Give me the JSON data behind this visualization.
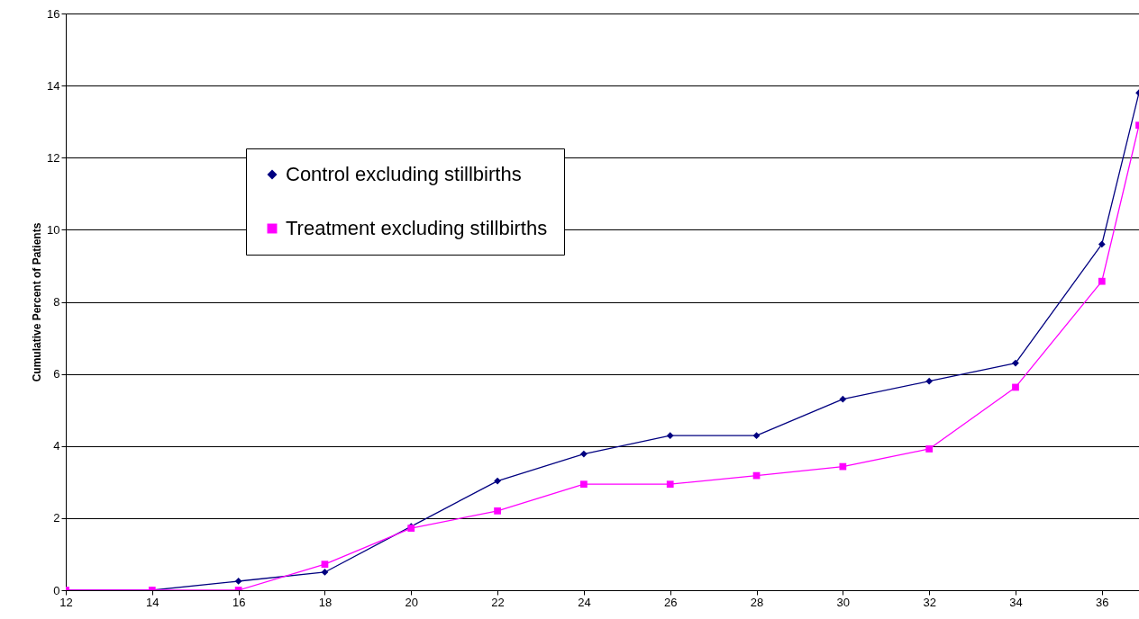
{
  "chart_data": {
    "type": "line",
    "ylabel": "Cumulative Percent of Patients",
    "x": [
      12,
      14,
      16,
      18,
      20,
      22,
      24,
      26,
      28,
      30,
      32,
      34,
      36,
      36.86
    ],
    "series": [
      {
        "name": "Control excluding stillbirths",
        "color": "#000080",
        "marker": "diamond",
        "values": [
          0,
          0,
          0.25,
          0.5,
          1.77,
          3.03,
          3.78,
          4.29,
          4.29,
          5.3,
          5.8,
          6.3,
          9.6,
          13.8
        ]
      },
      {
        "name": "Treatment excluding stillbirths",
        "color": "#ff00ff",
        "marker": "square",
        "values": [
          0,
          0,
          0,
          0.72,
          1.72,
          2.2,
          2.94,
          2.94,
          3.18,
          3.43,
          3.92,
          5.63,
          8.57,
          12.9
        ]
      }
    ],
    "xlim": [
      12,
      36.86
    ],
    "xticks": [
      12,
      14,
      16,
      18,
      20,
      22,
      24,
      26,
      28,
      30,
      32,
      34,
      36
    ],
    "ylim": [
      0,
      16
    ],
    "yticks": [
      0,
      2,
      4,
      6,
      8,
      10,
      12,
      14,
      16
    ],
    "grid": "y",
    "legend": "left",
    "line_style": "solid"
  }
}
